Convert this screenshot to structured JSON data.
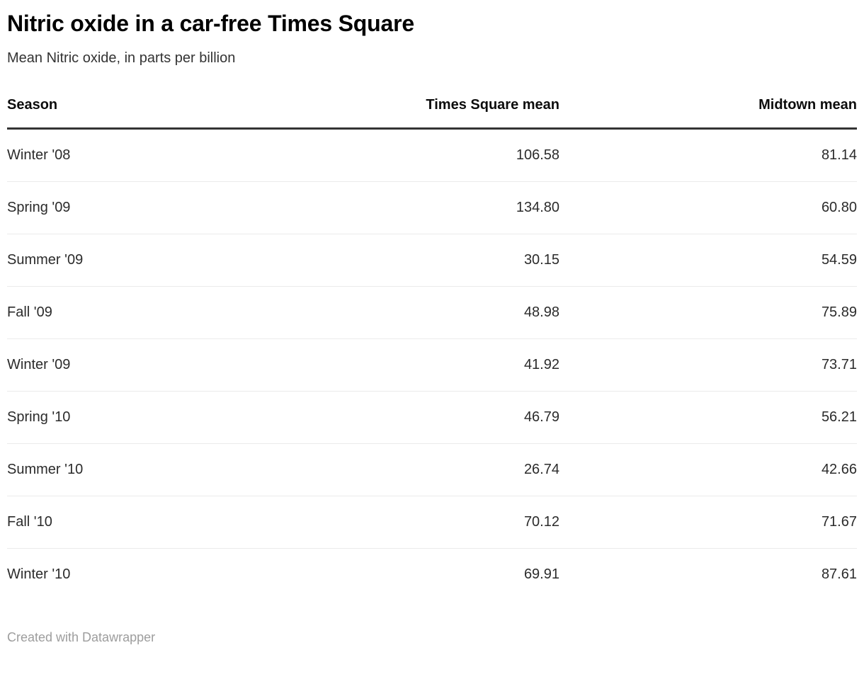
{
  "page": {
    "title": "Nitric oxide in a car-free Times Square",
    "subtitle": "Mean Nitric oxide, in parts per billion",
    "credit": "Created with Datawrapper"
  },
  "colors": {
    "background": "#ffffff",
    "title_text": "#000000",
    "body_text": "#2b2b2b",
    "header_border": "#333333",
    "row_divider": "#ebebeb",
    "credit_text": "#9d9d9d"
  },
  "chart_data": {
    "type": "table",
    "title": "Nitric oxide in a car-free Times Square",
    "subtitle": "Mean Nitric oxide, in parts per billion",
    "columns": [
      "Season",
      "Times Square mean",
      "Midtown mean"
    ],
    "rows": [
      [
        "Winter '08",
        "106.58",
        "81.14"
      ],
      [
        "Spring '09",
        "134.80",
        "60.80"
      ],
      [
        "Summer '09",
        "30.15",
        "54.59"
      ],
      [
        "Fall '09",
        "48.98",
        "75.89"
      ],
      [
        "Winter '09",
        "41.92",
        "73.71"
      ],
      [
        "Spring '10",
        "46.79",
        "56.21"
      ],
      [
        "Summer '10",
        "26.74",
        "42.66"
      ],
      [
        "Fall '10",
        "70.12",
        "71.67"
      ],
      [
        "Winter '10",
        "69.91",
        "87.61"
      ]
    ],
    "layout": {
      "first_column_align": "left",
      "value_columns_align": "right",
      "grid": "horizontal-dividers",
      "legend": "none"
    }
  }
}
